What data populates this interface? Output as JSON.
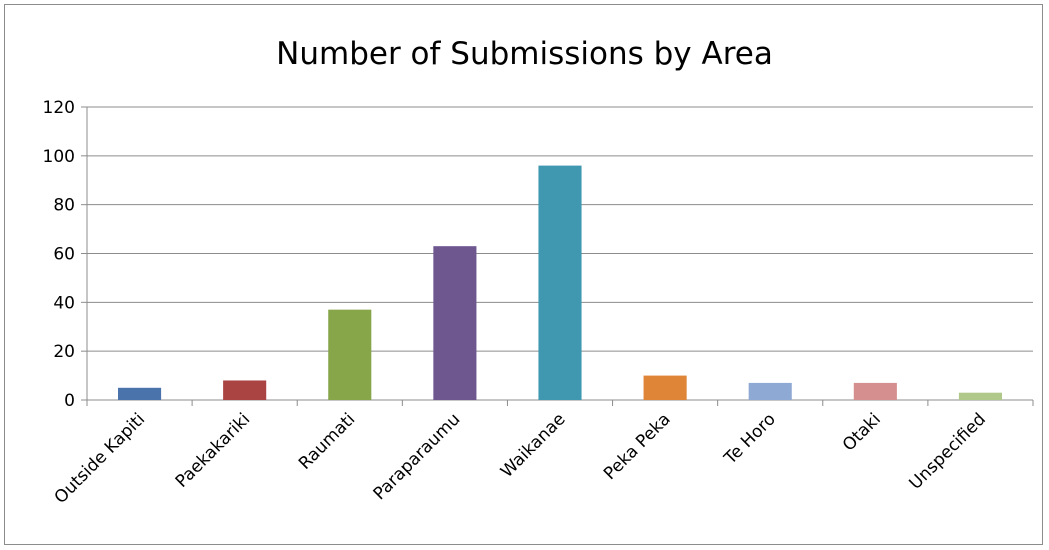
{
  "chart_data": {
    "type": "bar",
    "title": "Number of Submissions by Area",
    "xlabel": "",
    "ylabel": "",
    "ylim": [
      0,
      120
    ],
    "yticks": [
      0,
      20,
      40,
      60,
      80,
      100,
      120
    ],
    "grid": true,
    "legend": "none",
    "categories": [
      "Outside Kapiti",
      "Paekakariki",
      "Raumati",
      "Paraparaumu",
      "Waikanae",
      "Peka Peka",
      "Te Horo",
      "Otaki",
      "Unspecified"
    ],
    "values": [
      5,
      8,
      37,
      63,
      96,
      10,
      7,
      7,
      3
    ],
    "colors": [
      "#4a73ab",
      "#a94442",
      "#87a64a",
      "#6e578f",
      "#3f98b0",
      "#df8538",
      "#8ea9d3",
      "#d48f8e",
      "#b0c98a"
    ]
  }
}
